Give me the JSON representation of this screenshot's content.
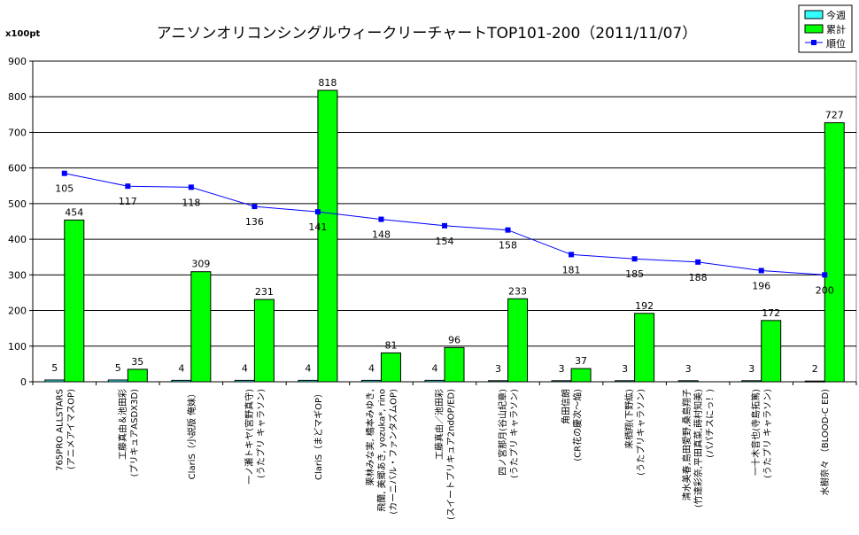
{
  "chart_data": {
    "type": "bar",
    "title": "アニソンオリコンシングルウィークリーチャートTOP101-200（2011/11/07）",
    "unit_label": "x100pt",
    "ylim": [
      0,
      900
    ],
    "yticks": [
      "0",
      "100",
      "200",
      "300",
      "400",
      "500",
      "600",
      "700",
      "800",
      "900"
    ],
    "y2lim": [
      0,
      300
    ],
    "grid": true,
    "legend_position": "top-right",
    "categories": [
      [
        "765PRO ALLSTARS",
        "(アニメアイマスOP)"
      ],
      [
        "工藤真由＆池田彩",
        "(プリキュアASDX3D)"
      ],
      [
        "ClariS（小説版 俺妹）"
      ],
      [
        "一ノ瀬トキヤ(宮野真守)",
        "(うたプリ キャラソン)"
      ],
      [
        "ClariS（まどマギOP）"
      ],
      [
        "栗林みな実, 橋本みゆき,",
        "飛蘭, 美郷あき, yozuka*, rino",
        "(カーニバル・ファンタズムOP)"
      ],
      [
        "工藤真由／池田彩",
        "(スイートプリキュア2ndOP/ED)"
      ],
      [
        "四ノ宮那月(谷山紀章)",
        "(うたプリ キャラソン)"
      ],
      [
        "角田信朗",
        "(CR花の慶次〜焔)"
      ],
      [
        "来栖翔(下野紘)",
        "(うたプリキャラソン)"
      ],
      [
        "清水美春,島田愛野,桑島翔子",
        "(竹達彩奈,平田真菜,蒔村知美)",
        "(パパチスにっ！)"
      ],
      [
        "一十木音也(寺島拓篤)",
        "(うたプリ キャラソン)"
      ],
      [
        "水樹奈々 （BLOOD-C ED)"
      ]
    ],
    "series": [
      {
        "name": "今週",
        "type": "bar",
        "color": "#33ffff",
        "values": [
          5,
          5,
          4,
          4,
          4,
          4,
          4,
          3,
          3,
          3,
          3,
          3,
          2
        ],
        "labels": [
          "5",
          "5",
          "4",
          "4",
          "4",
          "4",
          "4",
          "3",
          "3",
          "3",
          "3",
          "3",
          "2"
        ]
      },
      {
        "name": "累計",
        "type": "bar",
        "color": "#00ff00",
        "values": [
          454,
          35,
          309,
          231,
          818,
          81,
          96,
          233,
          37,
          192,
          null,
          172,
          727
        ],
        "labels": [
          "454",
          "35",
          "309",
          "231",
          "818",
          "81",
          "96",
          "233",
          "37",
          "192",
          "",
          "172",
          "727"
        ]
      },
      {
        "name": "順位",
        "type": "line",
        "axis": "secondary",
        "color": "#0000ff",
        "values": [
          105,
          117,
          118,
          136,
          141,
          148,
          154,
          158,
          181,
          185,
          188,
          196,
          200
        ],
        "labels": [
          "105",
          "117",
          "118",
          "136",
          "141",
          "148",
          "154",
          "158",
          "181",
          "185",
          "188",
          "196",
          "200"
        ]
      }
    ]
  }
}
